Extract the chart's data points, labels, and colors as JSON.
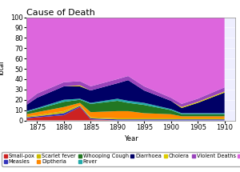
{
  "title": "Cause of Death",
  "xlabel": "Year",
  "ylabel": "Total",
  "years": [
    1873,
    1875,
    1880,
    1883,
    1885,
    1890,
    1892,
    1895,
    1900,
    1902,
    1905,
    1910
  ],
  "series": {
    "Small-pox": [
      2,
      3,
      5,
      13,
      1,
      0,
      0,
      0,
      0,
      0,
      0,
      0
    ],
    "Measles": [
      1,
      1,
      2,
      1,
      1,
      1,
      1,
      1,
      1,
      1,
      1,
      1
    ],
    "Scarlet fever": [
      1,
      1,
      2,
      1,
      1,
      1,
      1,
      1,
      1,
      1,
      1,
      1
    ],
    "Diptheria": [
      2,
      3,
      4,
      2,
      5,
      7,
      7,
      5,
      4,
      2,
      2,
      2
    ],
    "Whooping Cough": [
      2,
      3,
      5,
      3,
      8,
      10,
      8,
      8,
      4,
      2,
      2,
      2
    ],
    "Fever": [
      1,
      1,
      2,
      1,
      1,
      2,
      2,
      2,
      1,
      1,
      1,
      1
    ],
    "Diarrhoea": [
      6,
      10,
      13,
      12,
      12,
      15,
      20,
      12,
      8,
      5,
      10,
      20
    ],
    "Cholera": [
      0,
      0,
      0,
      1,
      0,
      0,
      0,
      0,
      0,
      1,
      1,
      1
    ],
    "Violent Deaths": [
      3,
      4,
      4,
      4,
      4,
      4,
      4,
      4,
      3,
      3,
      3,
      4
    ],
    "Other": [
      82,
      74,
      63,
      62,
      67,
      60,
      57,
      67,
      78,
      84,
      79,
      68
    ]
  },
  "colors": {
    "Small-pox": "#cc2222",
    "Measles": "#3333bb",
    "Scarlet fever": "#ccbb00",
    "Diptheria": "#ff8800",
    "Whooping Cough": "#227722",
    "Fever": "#22aaaa",
    "Diarrhoea": "#000066",
    "Cholera": "#ddcc00",
    "Violent Deaths": "#9944bb",
    "Other": "#dd66dd"
  },
  "ylim": [
    0,
    100
  ],
  "xlim": [
    1873,
    1912
  ],
  "xticks": [
    1875,
    1880,
    1885,
    1890,
    1895,
    1900,
    1905,
    1910
  ],
  "yticks": [
    0,
    10,
    20,
    30,
    40,
    50,
    60,
    70,
    80,
    90,
    100
  ],
  "background_color": "#ffffff",
  "plot_bg_color": "#eeeeff",
  "title_fontsize": 8,
  "axis_fontsize": 6,
  "tick_fontsize": 6,
  "legend_fontsize": 4.8
}
